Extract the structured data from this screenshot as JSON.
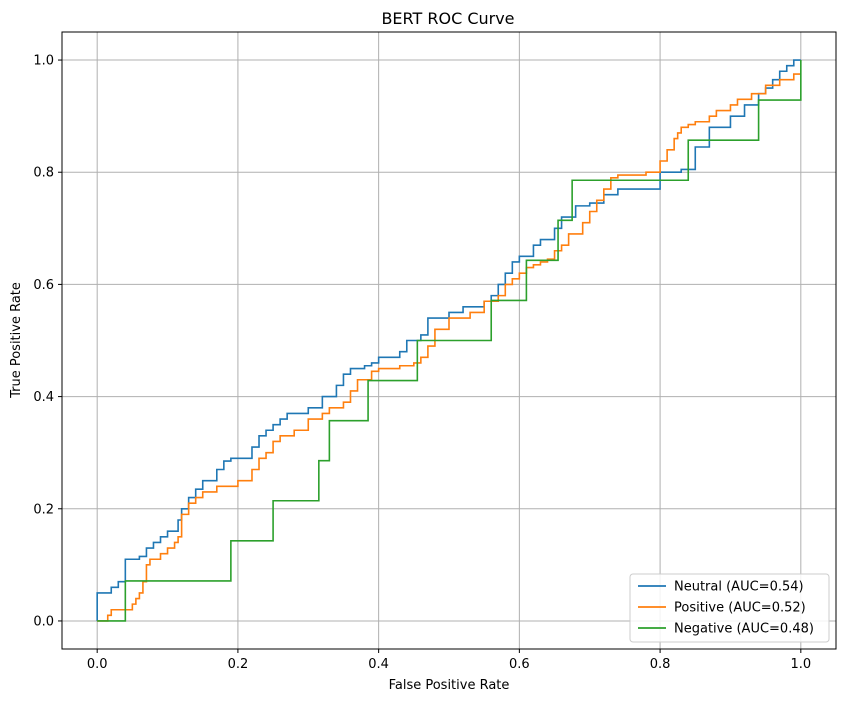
{
  "chart_data": {
    "type": "line",
    "title": "BERT ROC Curve",
    "xlabel": "False Positive Rate",
    "ylabel": "True Positive Rate",
    "xlim": [
      -0.05,
      1.05
    ],
    "ylim": [
      -0.05,
      1.05
    ],
    "xticks": [
      0.0,
      0.2,
      0.4,
      0.6,
      0.8,
      1.0
    ],
    "yticks": [
      0.0,
      0.2,
      0.4,
      0.6,
      0.8,
      1.0
    ],
    "xtick_labels": [
      "0.0",
      "0.2",
      "0.4",
      "0.6",
      "0.8",
      "1.0"
    ],
    "ytick_labels": [
      "0.0",
      "0.2",
      "0.4",
      "0.6",
      "0.8",
      "1.0"
    ],
    "grid": true,
    "legend_position": "lower-right",
    "step": true,
    "series": [
      {
        "name": "Neutral (AUC=0.54)",
        "color": "#1f77b4",
        "x": [
          0.0,
          0.0,
          0.015,
          0.02,
          0.03,
          0.04,
          0.04,
          0.06,
          0.07,
          0.08,
          0.09,
          0.1,
          0.115,
          0.12,
          0.13,
          0.14,
          0.15,
          0.17,
          0.18,
          0.19,
          0.21,
          0.22,
          0.23,
          0.24,
          0.25,
          0.26,
          0.27,
          0.3,
          0.32,
          0.34,
          0.35,
          0.36,
          0.38,
          0.39,
          0.4,
          0.43,
          0.44,
          0.46,
          0.47,
          0.5,
          0.52,
          0.55,
          0.56,
          0.57,
          0.58,
          0.59,
          0.6,
          0.62,
          0.63,
          0.65,
          0.66,
          0.68,
          0.7,
          0.72,
          0.74,
          0.8,
          0.83,
          0.85,
          0.87,
          0.9,
          0.92,
          0.94,
          0.95,
          0.96,
          0.97,
          0.98,
          0.99,
          1.0
        ],
        "y": [
          0.0,
          0.05,
          0.05,
          0.06,
          0.07,
          0.075,
          0.11,
          0.115,
          0.13,
          0.14,
          0.15,
          0.16,
          0.18,
          0.2,
          0.22,
          0.235,
          0.25,
          0.27,
          0.285,
          0.29,
          0.29,
          0.31,
          0.33,
          0.34,
          0.35,
          0.36,
          0.37,
          0.38,
          0.4,
          0.42,
          0.44,
          0.45,
          0.455,
          0.46,
          0.47,
          0.48,
          0.5,
          0.51,
          0.54,
          0.55,
          0.56,
          0.57,
          0.58,
          0.6,
          0.62,
          0.64,
          0.65,
          0.67,
          0.68,
          0.7,
          0.72,
          0.74,
          0.745,
          0.76,
          0.77,
          0.8,
          0.805,
          0.845,
          0.88,
          0.9,
          0.92,
          0.94,
          0.95,
          0.965,
          0.98,
          0.99,
          1.0,
          1.0
        ]
      },
      {
        "name": "Positive (AUC=0.52)",
        "color": "#ff7f0e",
        "x": [
          0.0,
          0.01,
          0.015,
          0.02,
          0.05,
          0.055,
          0.06,
          0.065,
          0.07,
          0.075,
          0.09,
          0.1,
          0.11,
          0.115,
          0.12,
          0.13,
          0.14,
          0.15,
          0.17,
          0.2,
          0.22,
          0.23,
          0.24,
          0.25,
          0.26,
          0.28,
          0.3,
          0.32,
          0.33,
          0.35,
          0.36,
          0.37,
          0.39,
          0.4,
          0.43,
          0.45,
          0.46,
          0.47,
          0.48,
          0.5,
          0.53,
          0.55,
          0.57,
          0.58,
          0.59,
          0.6,
          0.61,
          0.62,
          0.63,
          0.64,
          0.65,
          0.66,
          0.67,
          0.69,
          0.7,
          0.71,
          0.72,
          0.73,
          0.74,
          0.78,
          0.8,
          0.81,
          0.82,
          0.825,
          0.83,
          0.84,
          0.85,
          0.87,
          0.88,
          0.9,
          0.91,
          0.93,
          0.95,
          0.97,
          0.99,
          1.0
        ],
        "y": [
          0.0,
          0.0,
          0.01,
          0.02,
          0.03,
          0.04,
          0.05,
          0.07,
          0.1,
          0.11,
          0.12,
          0.13,
          0.14,
          0.15,
          0.19,
          0.21,
          0.22,
          0.23,
          0.24,
          0.25,
          0.27,
          0.29,
          0.3,
          0.32,
          0.33,
          0.34,
          0.36,
          0.37,
          0.38,
          0.39,
          0.41,
          0.43,
          0.445,
          0.45,
          0.455,
          0.46,
          0.47,
          0.49,
          0.52,
          0.54,
          0.55,
          0.57,
          0.58,
          0.6,
          0.61,
          0.62,
          0.63,
          0.635,
          0.64,
          0.645,
          0.66,
          0.67,
          0.69,
          0.71,
          0.73,
          0.75,
          0.77,
          0.79,
          0.795,
          0.8,
          0.82,
          0.84,
          0.86,
          0.87,
          0.88,
          0.885,
          0.89,
          0.9,
          0.91,
          0.92,
          0.93,
          0.94,
          0.955,
          0.965,
          0.975,
          0.975
        ]
      },
      {
        "name": "Negative (AUC=0.48)",
        "color": "#2ca02c",
        "x": [
          0.0,
          0.04,
          0.04,
          0.19,
          0.19,
          0.25,
          0.25,
          0.315,
          0.315,
          0.33,
          0.33,
          0.385,
          0.385,
          0.455,
          0.455,
          0.56,
          0.56,
          0.61,
          0.61,
          0.655,
          0.655,
          0.675,
          0.675,
          0.84,
          0.84,
          0.94,
          0.94,
          1.0,
          1.0
        ],
        "y": [
          0.0,
          0.0,
          0.0714,
          0.0714,
          0.1429,
          0.1429,
          0.2143,
          0.2143,
          0.2857,
          0.2857,
          0.3571,
          0.3571,
          0.4286,
          0.4286,
          0.5,
          0.5,
          0.5714,
          0.5714,
          0.6429,
          0.6429,
          0.7143,
          0.7143,
          0.7857,
          0.7857,
          0.8571,
          0.8571,
          0.9286,
          0.9286,
          1.0
        ]
      }
    ]
  }
}
